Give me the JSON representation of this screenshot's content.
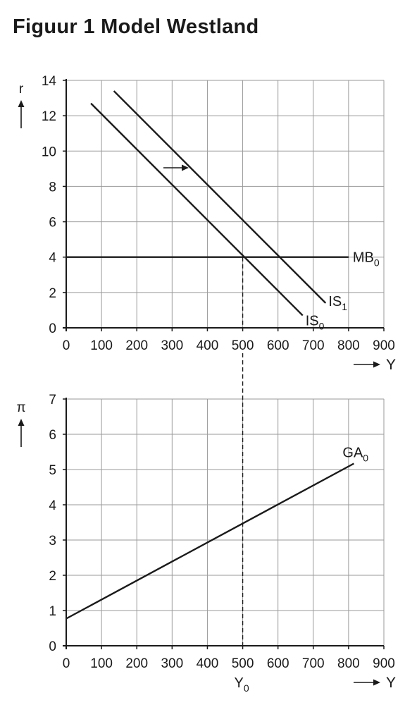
{
  "title": "Figuur 1 Model Westland",
  "chart_data": [
    {
      "type": "line",
      "x": {
        "label": "Y",
        "range": [
          0,
          900
        ],
        "ticks": [
          0,
          100,
          200,
          300,
          400,
          500,
          600,
          700,
          800,
          900
        ]
      },
      "y": {
        "label": "r",
        "range": [
          0,
          14
        ],
        "ticks": [
          0,
          2,
          4,
          6,
          8,
          10,
          12,
          14
        ]
      },
      "grid": true,
      "series": [
        {
          "name": "IS",
          "sub": "0",
          "points": [
            [
              70,
              12.7
            ],
            [
              670,
              0.7
            ]
          ]
        },
        {
          "name": "IS",
          "sub": "1",
          "points": [
            [
              135,
              13.4
            ],
            [
              735,
              1.4
            ]
          ]
        },
        {
          "name": "MB",
          "sub": "0",
          "points": [
            [
              0,
              4
            ],
            [
              800,
              4
            ]
          ]
        }
      ],
      "annotations": [
        {
          "type": "arrow",
          "from": [
            280,
            9
          ],
          "to": [
            345,
            9
          ],
          "meaning": "shift of IS curve to the right"
        },
        {
          "type": "dashed_vertical",
          "x": 500,
          "from_y": 4
        }
      ]
    },
    {
      "type": "line",
      "x": {
        "label": "Y",
        "range": [
          0,
          900
        ],
        "ticks": [
          0,
          100,
          200,
          300,
          400,
          500,
          600,
          700,
          800,
          900
        ]
      },
      "y": {
        "label": "π",
        "range": [
          0,
          7
        ],
        "ticks": [
          0,
          1,
          2,
          3,
          4,
          5,
          6,
          7
        ]
      },
      "grid": true,
      "series": [
        {
          "name": "GA",
          "sub": "0",
          "points": [
            [
              0,
              0.77
            ],
            [
              815,
              5.17
            ]
          ]
        }
      ],
      "annotations": [
        {
          "type": "dashed_vertical",
          "x": 500,
          "to_y": 0
        },
        {
          "type": "x_marker",
          "x": 500,
          "label": "Y",
          "sub": "0"
        }
      ]
    }
  ]
}
